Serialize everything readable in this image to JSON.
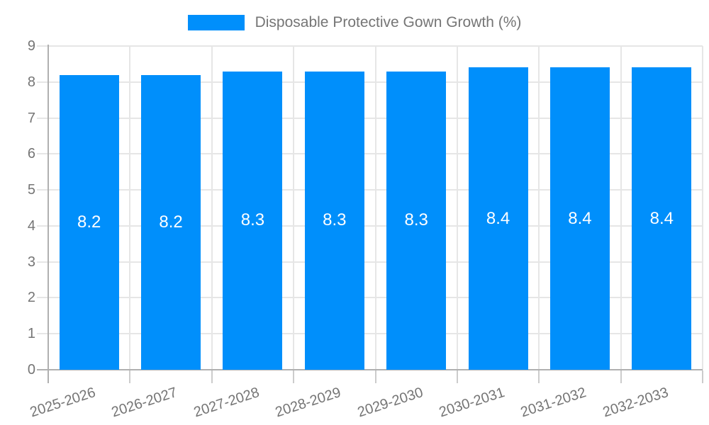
{
  "chart_data": {
    "type": "bar",
    "title": "",
    "legend": {
      "label": "Disposable Protective Gown Growth (%)",
      "position": "top"
    },
    "categories": [
      "2025-2026",
      "2026-2027",
      "2027-2028",
      "2028-2029",
      "2029-2030",
      "2030-2031",
      "2031-2032",
      "2032-2033"
    ],
    "values": [
      8.2,
      8.2,
      8.3,
      8.3,
      8.3,
      8.4,
      8.4,
      8.4
    ],
    "value_labels": [
      "8.2",
      "8.2",
      "8.3",
      "8.3",
      "8.3",
      "8.4",
      "8.4",
      "8.4"
    ],
    "xlabel": "",
    "ylabel": "",
    "ylim": [
      0,
      9
    ],
    "y_ticks": [
      0,
      1,
      2,
      3,
      4,
      5,
      6,
      7,
      8,
      9
    ],
    "grid": true,
    "colors": {
      "bar": "#008FFB",
      "grid": "#e6e6e6",
      "axis": "#b0b0b0",
      "tick": "#cccccc",
      "label_text": "#757575",
      "value_label": "#ffffff",
      "background": "#ffffff"
    }
  }
}
